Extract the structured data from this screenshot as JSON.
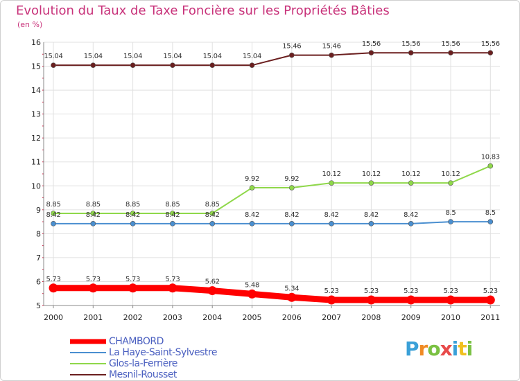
{
  "chart_data": {
    "type": "line",
    "title": "Evolution du Taux de Taxe Foncière sur les Propriétés Bâties",
    "ylabel": "(en %)",
    "xlabel": "",
    "ylim": [
      5,
      16
    ],
    "yticks": [
      5,
      6,
      7,
      8,
      9,
      10,
      11,
      12,
      13,
      14,
      15,
      16
    ],
    "categories": [
      "2000",
      "2001",
      "2002",
      "2003",
      "2004",
      "2005",
      "2006",
      "2007",
      "2008",
      "2009",
      "2010",
      "2011"
    ],
    "series": [
      {
        "name": "CHAMBORD",
        "color": "#ff0000",
        "values": [
          5.73,
          5.73,
          5.73,
          5.73,
          5.62,
          5.48,
          5.34,
          5.23,
          5.23,
          5.23,
          5.23,
          5.23
        ],
        "labels": [
          "5.73",
          "5.73",
          "5.73",
          "5.73",
          "5.62",
          "5.48",
          "5.34",
          "5.23",
          "5.23",
          "5.23",
          "5.23",
          "5.23"
        ]
      },
      {
        "name": "La Haye-Saint-Sylvestre",
        "color": "#4a8fd0",
        "values": [
          8.42,
          8.42,
          8.42,
          8.42,
          8.42,
          8.42,
          8.42,
          8.42,
          8.42,
          8.42,
          8.5,
          8.5
        ],
        "labels": [
          "8.42",
          "8.42",
          "8.42",
          "8.42",
          "8.42",
          "8.42",
          "8.42",
          "8.42",
          "8.42",
          "8.42",
          "8.5",
          "8.5"
        ]
      },
      {
        "name": "Glos-la-Ferrière",
        "color": "#8fd84a",
        "values": [
          8.85,
          8.85,
          8.85,
          8.85,
          8.85,
          9.92,
          9.92,
          10.12,
          10.12,
          10.12,
          10.12,
          10.83
        ],
        "labels": [
          "8.85",
          "8.85",
          "8.85",
          "8.85",
          "8.85",
          "9.92",
          "9.92",
          "10.12",
          "10.12",
          "10.12",
          "10.12",
          "10.83"
        ]
      },
      {
        "name": "Mesnil-Rousset",
        "color": "#6b1f1f",
        "values": [
          15.04,
          15.04,
          15.04,
          15.04,
          15.04,
          15.04,
          15.46,
          15.46,
          15.56,
          15.56,
          15.56,
          15.56
        ],
        "labels": [
          "15.04",
          "15.04",
          "15.04",
          "15.04",
          "15.04",
          "15.04",
          "15.46",
          "15.46",
          "15.56",
          "15.56",
          "15.56",
          "15.56"
        ]
      }
    ],
    "legend": [
      "CHAMBORD",
      "La Haye-Saint-Sylvestre",
      "Glos-la-Ferrière",
      "Mesnil-Rousset"
    ]
  },
  "logo": {
    "text": "Proxiti",
    "letters": [
      "P",
      "r",
      "o",
      "x",
      "i",
      "t",
      "i"
    ],
    "colors": [
      "#3aa0d8",
      "#f08a24",
      "#7ac142",
      "#e84a4a",
      "#3aa0d8",
      "#f0c020",
      "#7ac142"
    ]
  },
  "colors": {
    "title": "#c8327a",
    "grid": "#e0e0e0",
    "axis": "#888888"
  }
}
